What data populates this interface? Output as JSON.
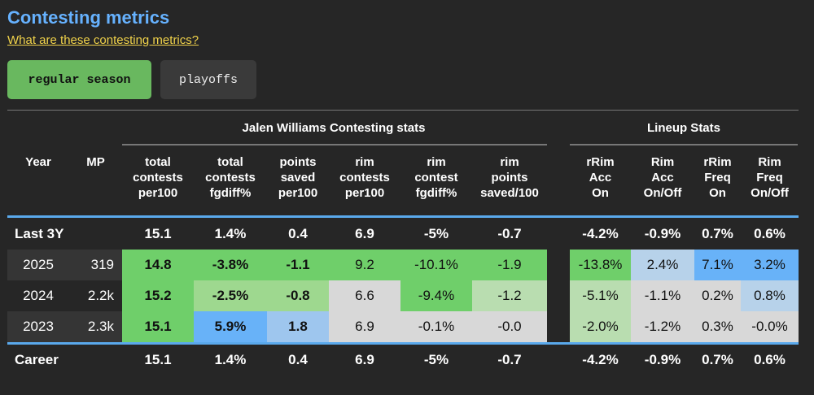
{
  "title": "Contesting metrics",
  "help_link": "What are these contesting metrics?",
  "buttons": {
    "regular": "regular season",
    "playoffs": "playoffs"
  },
  "group_headers": {
    "player": "Jalen Williams Contesting stats",
    "lineup": "Lineup Stats"
  },
  "columns": [
    "Year",
    "MP",
    "total\ncontests\nper100",
    "total\ncontests\nfgdiff%",
    "points\nsaved\nper100",
    "rim\ncontests\nper100",
    "rim\ncontest\nfgdiff%",
    "rim\npoints\nsaved/100",
    "rRim\nAcc\nOn",
    "Rim\nAcc\nOn/Off",
    "rRim\nFreq\nOn",
    "Rim\nFreq\nOn/Off"
  ],
  "colors": {
    "strong_green": "#6fcf6a",
    "medium_green": "#9ed88f",
    "light_green": "#b9ddb0",
    "neutral": "#d8d8d8",
    "light_blue": "#b7d2ea",
    "medium_blue": "#9ec6ee",
    "strong_blue": "#68b2f8",
    "accent_blue": "#5aa9ec",
    "row_gray": "#353535"
  },
  "rows": {
    "last3": {
      "year": "Last 3Y",
      "mp": "",
      "values": [
        "15.1",
        "1.4%",
        "0.4",
        "6.9",
        "-5%",
        "-0.7",
        "-4.2%",
        "-0.9%",
        "0.7%",
        "0.6%"
      ]
    },
    "y2025": {
      "year": "2025",
      "mp": "319",
      "values": [
        "14.8",
        "-3.8%",
        "-1.1",
        "9.2",
        "-10.1%",
        "-1.9",
        "-13.8%",
        "2.4%",
        "7.1%",
        "3.2%"
      ]
    },
    "y2024": {
      "year": "2024",
      "mp": "2.2k",
      "values": [
        "15.2",
        "-2.5%",
        "-0.8",
        "6.6",
        "-9.4%",
        "-1.2",
        "-5.1%",
        "-1.1%",
        "0.2%",
        "0.8%"
      ]
    },
    "y2023": {
      "year": "2023",
      "mp": "2.3k",
      "values": [
        "15.1",
        "5.9%",
        "1.8",
        "6.9",
        "-0.1%",
        "-0.0",
        "-2.0%",
        "-1.2%",
        "0.3%",
        "-0.0%"
      ]
    },
    "career": {
      "year": "Career",
      "mp": "",
      "values": [
        "15.1",
        "1.4%",
        "0.4",
        "6.9",
        "-5%",
        "-0.7",
        "-4.2%",
        "-0.9%",
        "0.7%",
        "0.6%"
      ]
    }
  }
}
